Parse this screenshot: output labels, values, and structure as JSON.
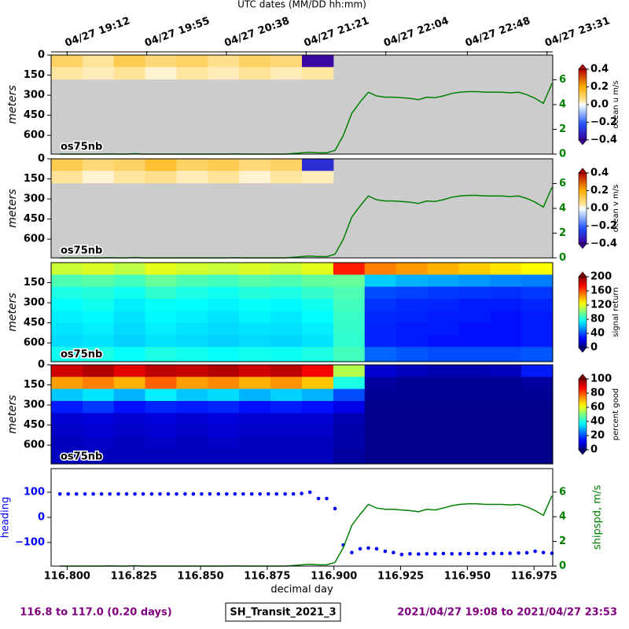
{
  "chart_data": [
    {
      "type": "heatmap",
      "label": "os75nb",
      "ylabel": "meters",
      "colorbar_label": "ocean u m/s",
      "colormap": "diverging",
      "x2label": "UTC dates (MM/DD hh:mm)",
      "x2ticks": [
        {
          "value": 116.8,
          "label": "04/27 19:12"
        },
        {
          "value": 116.82986,
          "label": "04/27 19:55"
        },
        {
          "value": 116.85972,
          "label": "04/27 20:38"
        },
        {
          "value": 116.88958,
          "label": "04/27 21:21"
        },
        {
          "value": 116.91944,
          "label": "04/27 22:04"
        },
        {
          "value": 116.95,
          "label": "04/27 22:48"
        },
        {
          "value": 116.97986,
          "label": "04/27 23:31"
        }
      ],
      "xlim": [
        116.794,
        116.982
      ],
      "ylim": [
        0,
        740
      ],
      "invert_y": true,
      "yticks": [
        0,
        150,
        300,
        450,
        600
      ],
      "y2lim": [
        0,
        8
      ],
      "y2ticks": [
        0,
        2,
        4,
        6
      ],
      "y2color": "#008000",
      "zlim": [
        -0.4,
        0.4
      ],
      "zticks": [
        {
          "value": -0.4,
          "label": "−0.4"
        },
        {
          "value": -0.2,
          "label": "−0.2"
        },
        {
          "value": 0,
          "label": "0.0"
        },
        0.2,
        0.4
      ],
      "x_edges": [
        116.794,
        116.80575,
        116.8175,
        116.82925,
        116.841,
        116.85275,
        116.8645,
        116.87625,
        116.888,
        116.89975,
        116.9115,
        116.92325,
        116.935,
        116.94675,
        116.9585,
        116.97025,
        116.982
      ],
      "y_edges": [
        0,
        90,
        180,
        270,
        360,
        450,
        540,
        630,
        740
      ],
      "z": [
        [
          0.1,
          0.05,
          0.12,
          0.08,
          0.1,
          0.06,
          0.1,
          0.08,
          -0.38,
          null,
          null,
          null,
          null,
          null,
          null,
          null
        ],
        [
          0.04,
          0.03,
          0.05,
          0.02,
          0.04,
          0.03,
          0.05,
          0.03,
          0.04,
          null,
          null,
          null,
          null,
          null,
          null,
          null
        ],
        [
          null,
          null,
          null,
          null,
          null,
          null,
          null,
          null,
          null,
          null,
          null,
          null,
          null,
          null,
          null,
          null
        ],
        [
          null,
          null,
          null,
          null,
          null,
          null,
          null,
          null,
          null,
          null,
          null,
          null,
          null,
          null,
          null,
          null
        ],
        [
          null,
          null,
          null,
          null,
          null,
          null,
          null,
          null,
          null,
          null,
          null,
          null,
          null,
          null,
          null,
          null
        ],
        [
          null,
          null,
          null,
          null,
          null,
          null,
          null,
          null,
          null,
          null,
          null,
          null,
          null,
          null,
          null,
          null
        ],
        [
          null,
          null,
          null,
          null,
          null,
          null,
          null,
          null,
          null,
          null,
          null,
          null,
          null,
          null,
          null,
          null
        ],
        [
          null,
          null,
          null,
          null,
          null,
          null,
          null,
          null,
          null,
          null,
          null,
          null,
          null,
          null,
          null,
          null
        ]
      ]
    },
    {
      "type": "heatmap",
      "label": "os75nb",
      "ylabel": "meters",
      "colorbar_label": "ocean v m/s",
      "colormap": "diverging",
      "xlim": [
        116.794,
        116.982
      ],
      "ylim": [
        0,
        740
      ],
      "invert_y": true,
      "yticks": [
        0,
        150,
        300,
        450,
        600
      ],
      "y2lim": [
        0,
        8
      ],
      "y2ticks": [
        0,
        2,
        4,
        6
      ],
      "y2color": "#008000",
      "zlim": [
        -0.4,
        0.4
      ],
      "zticks": [
        {
          "value": -0.4,
          "label": "−0.4"
        },
        {
          "value": -0.2,
          "label": "−0.2"
        },
        {
          "value": 0,
          "label": "0.0"
        },
        0.2,
        0.4
      ],
      "x_edges": [
        116.794,
        116.80575,
        116.8175,
        116.82925,
        116.841,
        116.85275,
        116.8645,
        116.87625,
        116.888,
        116.89975,
        116.9115,
        116.92325,
        116.935,
        116.94675,
        116.9585,
        116.97025,
        116.982
      ],
      "y_edges": [
        0,
        90,
        180,
        270,
        360,
        450,
        540,
        630,
        740
      ],
      "z": [
        [
          0.12,
          0.08,
          0.1,
          0.15,
          0.1,
          0.12,
          0.08,
          0.1,
          -0.3,
          null,
          null,
          null,
          null,
          null,
          null,
          null
        ],
        [
          0.05,
          0.02,
          0.04,
          0.06,
          0.03,
          0.05,
          0.02,
          0.04,
          0.03,
          null,
          null,
          null,
          null,
          null,
          null,
          null
        ],
        [
          null,
          null,
          null,
          null,
          null,
          null,
          null,
          null,
          null,
          null,
          null,
          null,
          null,
          null,
          null,
          null
        ],
        [
          null,
          null,
          null,
          null,
          null,
          null,
          null,
          null,
          null,
          null,
          null,
          null,
          null,
          null,
          null,
          null
        ],
        [
          null,
          null,
          null,
          null,
          null,
          null,
          null,
          null,
          null,
          null,
          null,
          null,
          null,
          null,
          null,
          null
        ],
        [
          null,
          null,
          null,
          null,
          null,
          null,
          null,
          null,
          null,
          null,
          null,
          null,
          null,
          null,
          null,
          null
        ],
        [
          null,
          null,
          null,
          null,
          null,
          null,
          null,
          null,
          null,
          null,
          null,
          null,
          null,
          null,
          null,
          null
        ],
        [
          null,
          null,
          null,
          null,
          null,
          null,
          null,
          null,
          null,
          null,
          null,
          null,
          null,
          null,
          null,
          null
        ]
      ]
    },
    {
      "type": "heatmap",
      "label": "os75nb",
      "ylabel": "meters",
      "colorbar_label": "signal return",
      "colormap": "jet",
      "xlim": [
        116.794,
        116.982
      ],
      "ylim": [
        0,
        740
      ],
      "invert_y": true,
      "yticks": [
        150,
        300,
        450,
        600
      ],
      "zlim": [
        0,
        200
      ],
      "zticks": [
        0,
        40,
        80,
        120,
        160,
        200
      ],
      "x_edges": [
        116.794,
        116.80575,
        116.8175,
        116.82925,
        116.841,
        116.85275,
        116.8645,
        116.87625,
        116.888,
        116.89975,
        116.9115,
        116.92325,
        116.935,
        116.94675,
        116.9585,
        116.97025,
        116.982
      ],
      "y_edges": [
        0,
        90,
        180,
        270,
        360,
        450,
        540,
        630,
        740
      ],
      "z": [
        [
          115,
          118,
          112,
          120,
          116,
          114,
          118,
          115,
          120,
          170,
          150,
          145,
          140,
          135,
          130,
          125
        ],
        [
          90,
          92,
          88,
          95,
          90,
          88,
          92,
          90,
          94,
          95,
          65,
          60,
          58,
          55,
          52,
          50
        ],
        [
          80,
          82,
          78,
          84,
          80,
          78,
          82,
          80,
          85,
          90,
          40,
          38,
          36,
          35,
          34,
          36
        ],
        [
          75,
          78,
          72,
          76,
          75,
          73,
          76,
          74,
          78,
          88,
          35,
          33,
          32,
          30,
          30,
          32
        ],
        [
          72,
          74,
          70,
          74,
          72,
          70,
          73,
          71,
          75,
          86,
          33,
          32,
          30,
          30,
          28,
          30
        ],
        [
          70,
          72,
          68,
          72,
          70,
          68,
          70,
          69,
          72,
          85,
          32,
          30,
          30,
          28,
          28,
          30
        ],
        [
          68,
          70,
          66,
          70,
          68,
          66,
          68,
          67,
          70,
          84,
          32,
          30,
          28,
          28,
          28,
          30
        ],
        [
          78,
          80,
          76,
          80,
          78,
          76,
          78,
          77,
          80,
          88,
          45,
          42,
          40,
          40,
          40,
          42
        ]
      ]
    },
    {
      "type": "heatmap",
      "label": "os75nb",
      "ylabel": "meters",
      "colorbar_label": "percent good",
      "colormap": "jet",
      "xlim": [
        116.794,
        116.982
      ],
      "ylim": [
        0,
        740
      ],
      "invert_y": true,
      "yticks": [
        0,
        150,
        300,
        450,
        600
      ],
      "zlim": [
        0,
        100
      ],
      "zticks": [
        0,
        20,
        40,
        60,
        80,
        100
      ],
      "x_edges": [
        116.794,
        116.80575,
        116.8175,
        116.82925,
        116.841,
        116.85275,
        116.8645,
        116.87625,
        116.888,
        116.89975,
        116.9115,
        116.92325,
        116.935,
        116.94675,
        116.9585,
        116.97025,
        116.982
      ],
      "y_edges": [
        0,
        90,
        180,
        270,
        360,
        450,
        540,
        630,
        740
      ],
      "z": [
        [
          92,
          95,
          90,
          94,
          93,
          95,
          92,
          94,
          88,
          55,
          8,
          6,
          5,
          5,
          6,
          15
        ],
        [
          72,
          75,
          70,
          78,
          72,
          74,
          70,
          73,
          68,
          40,
          3,
          2,
          2,
          2,
          2,
          3
        ],
        [
          32,
          35,
          30,
          36,
          32,
          34,
          30,
          33,
          30,
          20,
          2,
          2,
          2,
          2,
          2,
          2
        ],
        [
          15,
          18,
          14,
          16,
          15,
          16,
          14,
          15,
          14,
          10,
          1,
          1,
          1,
          1,
          1,
          1
        ],
        [
          8,
          9,
          8,
          9,
          8,
          9,
          8,
          8,
          8,
          5,
          1,
          1,
          1,
          1,
          1,
          1
        ],
        [
          7,
          8,
          7,
          8,
          7,
          8,
          7,
          7,
          7,
          4,
          1,
          1,
          1,
          1,
          1,
          1
        ],
        [
          6,
          7,
          6,
          7,
          6,
          7,
          6,
          6,
          6,
          4,
          1,
          1,
          1,
          1,
          1,
          1
        ],
        [
          6,
          6,
          6,
          6,
          6,
          6,
          6,
          6,
          6,
          3,
          1,
          1,
          1,
          1,
          1,
          1
        ]
      ]
    },
    {
      "type": "line",
      "xlabel": "decimal day",
      "ylabel": "heading",
      "y2label": "shipspd, m/s",
      "xlim": [
        116.794,
        116.982
      ],
      "xticks": [
        {
          "value": 116.8,
          "label": "116.800"
        },
        {
          "value": 116.825,
          "label": "116.825"
        },
        {
          "value": 116.85,
          "label": "116.850"
        },
        {
          "value": 116.875,
          "label": "116.875"
        },
        {
          "value": 116.9,
          "label": "116.900"
        },
        {
          "value": 116.925,
          "label": "116.925"
        },
        {
          "value": 116.95,
          "label": "116.950"
        },
        {
          "value": 116.975,
          "label": "116.975"
        }
      ],
      "ylim": [
        -194,
        194
      ],
      "yticks": [
        {
          "value": -100,
          "label": "−100"
        },
        0,
        100
      ],
      "ycolor": "#0000ff",
      "y2lim": [
        0,
        7.9
      ],
      "y2ticks": [
        0,
        2,
        4,
        6
      ],
      "y2color": "#008000",
      "x": [
        116.7973,
        116.8004,
        116.8035,
        116.8067,
        116.8098,
        116.8129,
        116.816,
        116.8192,
        116.8223,
        116.8254,
        116.8285,
        116.8317,
        116.8348,
        116.8379,
        116.841,
        116.8442,
        116.8473,
        116.8504,
        116.8535,
        116.8567,
        116.8598,
        116.8629,
        116.866,
        116.8692,
        116.8723,
        116.8754,
        116.8785,
        116.8817,
        116.8848,
        116.8879,
        116.891,
        116.8942,
        116.8973,
        116.9004,
        116.9035,
        116.9067,
        116.9098,
        116.9129,
        116.916,
        116.9192,
        116.9223,
        116.9254,
        116.9285,
        116.9317,
        116.9348,
        116.9379,
        116.941,
        116.9442,
        116.9473,
        116.9504,
        116.9535,
        116.9567,
        116.9598,
        116.9629,
        116.966,
        116.9692,
        116.9723,
        116.9754,
        116.9785,
        116.9817
      ],
      "series": [
        {
          "name": "heading",
          "style": "dots",
          "color": "#0000ff",
          "axis": "y",
          "values": [
            93,
            93,
            93,
            93,
            93,
            93,
            93,
            93,
            93,
            93,
            93,
            93,
            93,
            93,
            93,
            93,
            93,
            93,
            93,
            93,
            93,
            93,
            93,
            93,
            93,
            93,
            93,
            93,
            93,
            95,
            100,
            75,
            75,
            35,
            -110,
            -140,
            -125,
            -122,
            -125,
            -135,
            -140,
            -148,
            -145,
            -146,
            -145,
            -145,
            -144,
            -145,
            -145,
            -144,
            -144,
            -145,
            -143,
            -144,
            -143,
            -142,
            -141,
            -135,
            -140,
            -143
          ]
        },
        {
          "name": "shipspd",
          "style": "line",
          "color": "#008000",
          "axis": "y2",
          "values": [
            0,
            0,
            0,
            0,
            0,
            0,
            0.02,
            0,
            0,
            0.03,
            0,
            0,
            0,
            0,
            0,
            0,
            0,
            0,
            0,
            0,
            0,
            0.02,
            0,
            0,
            0,
            0,
            0,
            0,
            0.05,
            0.1,
            0.15,
            0.1,
            0.1,
            0.3,
            1.5,
            3.3,
            4.2,
            5.0,
            4.7,
            4.6,
            4.6,
            4.55,
            4.5,
            4.4,
            4.6,
            4.55,
            4.7,
            4.9,
            5.0,
            5.05,
            5.05,
            5.0,
            5.0,
            5.0,
            4.95,
            5.0,
            4.8,
            4.5,
            4.1,
            5.7
          ]
        }
      ]
    }
  ],
  "footer": {
    "left": "116.8 to 117.0 (0.20 days)",
    "center": "SH_Transit_2021_3",
    "right": "2021/04/27 19:08 to 2021/04/27 23:53"
  }
}
